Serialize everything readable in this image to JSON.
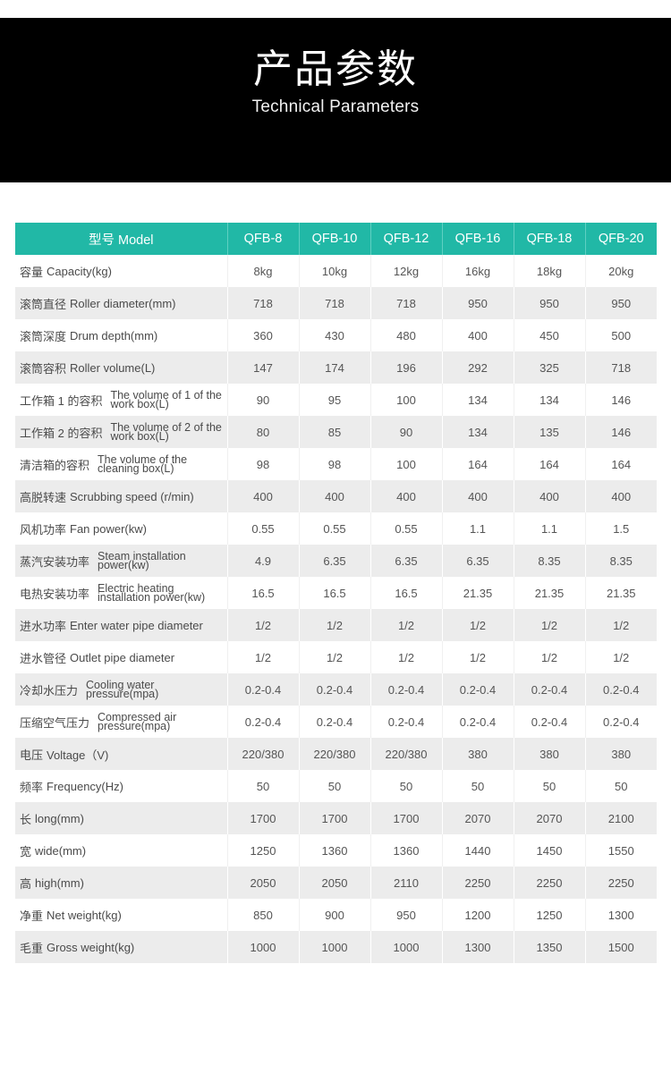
{
  "banner": {
    "title_cn": "产品参数",
    "title_en": "Technical Parameters"
  },
  "table": {
    "header": {
      "label": "型号 Model",
      "models": [
        "QFB-8",
        "QFB-10",
        "QFB-12",
        "QFB-16",
        "QFB-18",
        "QFB-20"
      ]
    },
    "rows": [
      {
        "cn": "容量",
        "en": "Capacity(kg)",
        "wrap": false,
        "values": [
          "8kg",
          "10kg",
          "12kg",
          "16kg",
          "18kg",
          "20kg"
        ]
      },
      {
        "cn": "滚筒直径",
        "en": "Roller diameter(mm)",
        "wrap": false,
        "values": [
          "718",
          "718",
          "718",
          "950",
          "950",
          "950"
        ]
      },
      {
        "cn": "滚筒深度",
        "en": "Drum depth(mm)",
        "wrap": false,
        "values": [
          "360",
          "430",
          "480",
          "400",
          "450",
          "500"
        ]
      },
      {
        "cn": "滚筒容积",
        "en": "Roller volume(L)",
        "wrap": false,
        "values": [
          "147",
          "174",
          "196",
          "292",
          "325",
          "718"
        ]
      },
      {
        "cn": "工作箱 1 的容积",
        "en": "The volume of 1 of the work box(L)",
        "wrap": true,
        "values": [
          "90",
          "95",
          "100",
          "134",
          "134",
          "146"
        ]
      },
      {
        "cn": "工作箱 2 的容积",
        "en": "The volume of 2 of the work box(L)",
        "wrap": true,
        "values": [
          "80",
          "85",
          "90",
          "134",
          "135",
          "146"
        ]
      },
      {
        "cn": "清洁箱的容积",
        "en": "The volume of the cleaning box(L)",
        "wrap": true,
        "values": [
          "98",
          "98",
          "100",
          "164",
          "164",
          "164"
        ]
      },
      {
        "cn": "高脱转速",
        "en": "Scrubbing speed (r/min)",
        "wrap": false,
        "values": [
          "400",
          "400",
          "400",
          "400",
          "400",
          "400"
        ]
      },
      {
        "cn": "风机功率",
        "en": "Fan power(kw)",
        "wrap": false,
        "values": [
          "0.55",
          "0.55",
          "0.55",
          "1.1",
          "1.1",
          "1.5"
        ]
      },
      {
        "cn": "蒸汽安装功率",
        "en": "Steam installation power(kw)",
        "wrap": true,
        "values": [
          "4.9",
          "6.35",
          "6.35",
          "6.35",
          "8.35",
          "8.35"
        ]
      },
      {
        "cn": "电热安装功率",
        "en": "Electric heating installation power(kw)",
        "wrap": true,
        "values": [
          "16.5",
          "16.5",
          "16.5",
          "21.35",
          "21.35",
          "21.35"
        ]
      },
      {
        "cn": "进水功率",
        "en": "Enter water pipe diameter",
        "wrap": false,
        "values": [
          "1/2",
          "1/2",
          "1/2",
          "1/2",
          "1/2",
          "1/2"
        ]
      },
      {
        "cn": "进水管径",
        "en": "Outlet pipe diameter",
        "wrap": false,
        "values": [
          "1/2",
          "1/2",
          "1/2",
          "1/2",
          "1/2",
          "1/2"
        ]
      },
      {
        "cn": "冷却水压力",
        "en": "Cooling water pressure(mpa)",
        "wrap": true,
        "values": [
          "0.2-0.4",
          "0.2-0.4",
          "0.2-0.4",
          "0.2-0.4",
          "0.2-0.4",
          "0.2-0.4"
        ]
      },
      {
        "cn": "压缩空气压力",
        "en": "Compressed air pressure(mpa)",
        "wrap": true,
        "values": [
          "0.2-0.4",
          "0.2-0.4",
          "0.2-0.4",
          "0.2-0.4",
          "0.2-0.4",
          "0.2-0.4"
        ]
      },
      {
        "cn": "电压",
        "en": "Voltage（V)",
        "wrap": false,
        "values": [
          "220/380",
          "220/380",
          "220/380",
          "380",
          "380",
          "380"
        ]
      },
      {
        "cn": "频率",
        "en": "Frequency(Hz)",
        "wrap": false,
        "values": [
          "50",
          "50",
          "50",
          "50",
          "50",
          "50"
        ]
      },
      {
        "cn": "长",
        "en": "long(mm)",
        "wrap": false,
        "values": [
          "1700",
          "1700",
          "1700",
          "2070",
          "2070",
          "2100"
        ]
      },
      {
        "cn": "宽",
        "en": "wide(mm)",
        "wrap": false,
        "values": [
          "1250",
          "1360",
          "1360",
          "1440",
          "1450",
          "1550"
        ]
      },
      {
        "cn": "高",
        "en": "high(mm)",
        "wrap": false,
        "values": [
          "2050",
          "2050",
          "2110",
          "2250",
          "2250",
          "2250"
        ]
      },
      {
        "cn": "净重",
        "en": "Net weight(kg)",
        "wrap": false,
        "values": [
          "850",
          "900",
          "950",
          "1200",
          "1250",
          "1300"
        ]
      },
      {
        "cn": "毛重",
        "en": "Gross weight(kg)",
        "wrap": false,
        "values": [
          "1000",
          "1000",
          "1000",
          "1300",
          "1350",
          "1500"
        ]
      }
    ]
  },
  "colors": {
    "banner_bg": "#000000",
    "header_bg": "#21b8a6",
    "row_alt_bg": "#ececec",
    "text": "#555555"
  }
}
